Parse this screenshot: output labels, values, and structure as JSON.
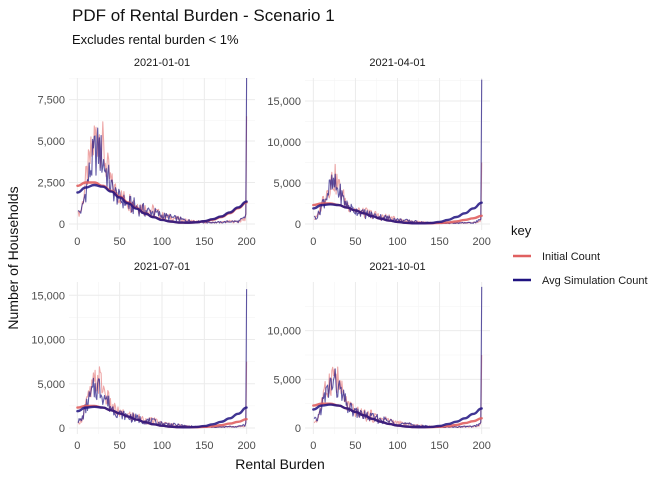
{
  "chart_data": {
    "type": "line",
    "title": "PDF of Rental Burden - Scenario 1",
    "subtitle": "Excludes rental burden < 1%",
    "xlabel": "Rental Burden",
    "ylabel": "Number of Households",
    "xlim": [
      0,
      200
    ],
    "x_ticks": [
      "0",
      "50",
      "100",
      "150",
      "200"
    ],
    "legend": {
      "title": "key",
      "placement": "right",
      "entries": [
        {
          "name": "Initial Count",
          "color": "#e06060"
        },
        {
          "name": "Avg Simulation Count",
          "color": "#1f1280"
        }
      ]
    },
    "panels": [
      {
        "title": "2021-01-01",
        "ylim": [
          0,
          8800
        ],
        "y_ticks": [
          0,
          2500,
          5000,
          7500
        ],
        "y_tick_labels": [
          "0",
          "2,500",
          "5,000",
          "7,500"
        ],
        "spike_end": {
          "initial": 6500,
          "avg": 8800
        },
        "series": [
          {
            "name": "Initial Count",
            "kind": "raw",
            "x": [
              1,
              5,
              10,
              15,
              20,
              25,
              30,
              35,
              40,
              45,
              50,
              60,
              70,
              80,
              90,
              100,
              110,
              120,
              130,
              140,
              150,
              160,
              170,
              180,
              190,
              198
            ],
            "y": [
              600,
              900,
              2600,
              3800,
              5000,
              5600,
              4600,
              3400,
              2400,
              2000,
              1700,
              1400,
              1200,
              900,
              800,
              500,
              400,
              300,
              200,
              150,
              100,
              100,
              100,
              150,
              150,
              300
            ]
          },
          {
            "name": "Avg Simulation Count",
            "kind": "raw",
            "x": [
              1,
              5,
              10,
              15,
              20,
              25,
              30,
              35,
              40,
              45,
              50,
              60,
              70,
              80,
              90,
              100,
              110,
              120,
              130,
              140,
              150,
              160,
              170,
              180,
              190,
              198
            ],
            "y": [
              700,
              800,
              2000,
              3200,
              4200,
              4500,
              3900,
              3000,
              2200,
              1800,
              1500,
              1200,
              1000,
              800,
              700,
              500,
              400,
              300,
              200,
              150,
              100,
              100,
              100,
              150,
              150,
              350
            ]
          },
          {
            "name": "Initial Count",
            "kind": "smooth",
            "x": [
              0,
              10,
              20,
              30,
              40,
              50,
              60,
              70,
              80,
              90,
              100,
              110,
              120,
              130,
              140,
              150,
              160,
              170,
              180,
              190,
              200
            ],
            "y": [
              2300,
              2500,
              2500,
              2300,
              2000,
              1650,
              1300,
              950,
              650,
              420,
              260,
              150,
              90,
              80,
              100,
              160,
              260,
              420,
              650,
              950,
              1300
            ]
          },
          {
            "name": "Avg Simulation Count",
            "kind": "smooth",
            "x": [
              0,
              10,
              20,
              30,
              40,
              50,
              60,
              70,
              80,
              90,
              100,
              110,
              120,
              130,
              140,
              150,
              160,
              170,
              180,
              190,
              200
            ],
            "y": [
              1900,
              2200,
              2350,
              2250,
              1950,
              1600,
              1250,
              920,
              630,
              410,
              250,
              150,
              90,
              80,
              100,
              170,
              290,
              460,
              700,
              1000,
              1350
            ]
          }
        ]
      },
      {
        "title": "2021-04-01",
        "ylim": [
          0,
          17800
        ],
        "y_ticks": [
          0,
          5000,
          10000,
          15000
        ],
        "y_tick_labels": [
          "0",
          "5,000",
          "10,000",
          "15,000"
        ],
        "spike_end": {
          "initial": 7500,
          "avg": 17600
        },
        "series": [
          {
            "name": "Initial Count",
            "kind": "raw",
            "x": [
              1,
              5,
              10,
              15,
              20,
              25,
              30,
              35,
              40,
              45,
              50,
              60,
              70,
              80,
              90,
              100,
              110,
              120,
              130,
              140,
              150,
              160,
              170,
              180,
              190,
              198
            ],
            "y": [
              600,
              900,
              2600,
              3800,
              5000,
              5600,
              4600,
              3400,
              2400,
              2000,
              1700,
              1400,
              1200,
              900,
              800,
              500,
              400,
              300,
              200,
              150,
              100,
              100,
              100,
              150,
              150,
              300
            ]
          },
          {
            "name": "Avg Simulation Count",
            "kind": "raw",
            "x": [
              1,
              5,
              10,
              15,
              20,
              25,
              30,
              35,
              40,
              45,
              50,
              60,
              70,
              80,
              90,
              100,
              110,
              120,
              130,
              140,
              150,
              160,
              170,
              180,
              190,
              198
            ],
            "y": [
              800,
              900,
              2300,
              3400,
              4400,
              4700,
              4000,
              3100,
              2300,
              1900,
              1600,
              1300,
              1050,
              850,
              700,
              500,
              400,
              300,
              200,
              150,
              100,
              100,
              100,
              150,
              150,
              400
            ]
          },
          {
            "name": "Initial Count",
            "kind": "smooth",
            "x": [
              0,
              10,
              20,
              30,
              40,
              50,
              60,
              70,
              80,
              90,
              100,
              110,
              120,
              130,
              140,
              150,
              160,
              170,
              180,
              190,
              200
            ],
            "y": [
              2300,
              2500,
              2500,
              2300,
              2000,
              1650,
              1300,
              950,
              650,
              420,
              260,
              150,
              90,
              80,
              90,
              130,
              200,
              320,
              500,
              700,
              1000
            ]
          },
          {
            "name": "Avg Simulation Count",
            "kind": "smooth",
            "x": [
              0,
              10,
              20,
              30,
              40,
              50,
              60,
              70,
              80,
              90,
              100,
              110,
              120,
              130,
              140,
              150,
              160,
              170,
              180,
              190,
              200
            ],
            "y": [
              1900,
              2300,
              2400,
              2300,
              2000,
              1650,
              1300,
              950,
              650,
              420,
              260,
              150,
              90,
              80,
              120,
              250,
              500,
              850,
              1300,
              1900,
              2600
            ]
          }
        ]
      },
      {
        "title": "2021-07-01",
        "ylim": [
          0,
          16500
        ],
        "y_ticks": [
          0,
          5000,
          10000,
          15000
        ],
        "y_tick_labels": [
          "0",
          "5,000",
          "10,000",
          "15,000"
        ],
        "spike_end": {
          "initial": 7500,
          "avg": 15700
        },
        "series": [
          {
            "name": "Initial Count",
            "kind": "raw",
            "x": [
              1,
              5,
              10,
              15,
              20,
              25,
              30,
              35,
              40,
              45,
              50,
              60,
              70,
              80,
              90,
              100,
              110,
              120,
              130,
              140,
              150,
              160,
              170,
              180,
              190,
              198
            ],
            "y": [
              600,
              900,
              2600,
              3800,
              5000,
              5600,
              4600,
              3400,
              2400,
              2000,
              1700,
              1400,
              1200,
              900,
              800,
              500,
              400,
              300,
              200,
              150,
              100,
              100,
              100,
              150,
              150,
              300
            ]
          },
          {
            "name": "Avg Simulation Count",
            "kind": "raw",
            "x": [
              1,
              5,
              10,
              15,
              20,
              25,
              30,
              35,
              40,
              45,
              50,
              60,
              70,
              80,
              90,
              100,
              110,
              120,
              130,
              140,
              150,
              160,
              170,
              180,
              190,
              198
            ],
            "y": [
              800,
              900,
              2300,
              3400,
              4400,
              4700,
              4000,
              3100,
              2300,
              1900,
              1600,
              1300,
              1050,
              850,
              700,
              500,
              400,
              300,
              200,
              150,
              100,
              100,
              100,
              150,
              150,
              400
            ]
          },
          {
            "name": "Initial Count",
            "kind": "smooth",
            "x": [
              0,
              10,
              20,
              30,
              40,
              50,
              60,
              70,
              80,
              90,
              100,
              110,
              120,
              130,
              140,
              150,
              160,
              170,
              180,
              190,
              200
            ],
            "y": [
              2300,
              2500,
              2500,
              2300,
              2000,
              1650,
              1300,
              950,
              650,
              420,
              260,
              150,
              90,
              80,
              90,
              130,
              200,
              320,
              500,
              700,
              1000
            ]
          },
          {
            "name": "Avg Simulation Count",
            "kind": "smooth",
            "x": [
              0,
              10,
              20,
              30,
              40,
              50,
              60,
              70,
              80,
              90,
              100,
              110,
              120,
              130,
              140,
              150,
              160,
              170,
              180,
              190,
              200
            ],
            "y": [
              1900,
              2300,
              2400,
              2300,
              2000,
              1650,
              1300,
              950,
              650,
              420,
              260,
              150,
              90,
              80,
              110,
              220,
              420,
              700,
              1100,
              1600,
              2300
            ]
          }
        ]
      },
      {
        "title": "2021-10-01",
        "ylim": [
          0,
          15000
        ],
        "y_ticks": [
          0,
          5000,
          10000
        ],
        "y_tick_labels": [
          "0",
          "5,000",
          "10,000"
        ],
        "spike_end": {
          "initial": 7500,
          "avg": 14500
        },
        "series": [
          {
            "name": "Initial Count",
            "kind": "raw",
            "x": [
              1,
              5,
              10,
              15,
              20,
              25,
              30,
              35,
              40,
              45,
              50,
              60,
              70,
              80,
              90,
              100,
              110,
              120,
              130,
              140,
              150,
              160,
              170,
              180,
              190,
              198
            ],
            "y": [
              600,
              900,
              2600,
              3800,
              5000,
              5600,
              4600,
              3400,
              2400,
              2000,
              1700,
              1400,
              1200,
              900,
              800,
              500,
              400,
              300,
              200,
              150,
              100,
              100,
              100,
              150,
              150,
              300
            ]
          },
          {
            "name": "Avg Simulation Count",
            "kind": "raw",
            "x": [
              1,
              5,
              10,
              15,
              20,
              25,
              30,
              35,
              40,
              45,
              50,
              60,
              70,
              80,
              90,
              100,
              110,
              120,
              130,
              140,
              150,
              160,
              170,
              180,
              190,
              198
            ],
            "y": [
              800,
              900,
              2300,
              3400,
              4400,
              4700,
              4000,
              3100,
              2300,
              1900,
              1600,
              1300,
              1050,
              850,
              700,
              500,
              400,
              300,
              200,
              150,
              100,
              100,
              100,
              150,
              150,
              400
            ]
          },
          {
            "name": "Initial Count",
            "kind": "smooth",
            "x": [
              0,
              10,
              20,
              30,
              40,
              50,
              60,
              70,
              80,
              90,
              100,
              110,
              120,
              130,
              140,
              150,
              160,
              170,
              180,
              190,
              200
            ],
            "y": [
              2300,
              2500,
              2500,
              2300,
              2000,
              1650,
              1300,
              950,
              650,
              420,
              260,
              150,
              90,
              80,
              90,
              130,
              200,
              320,
              500,
              700,
              1000
            ]
          },
          {
            "name": "Avg Simulation Count",
            "kind": "smooth",
            "x": [
              0,
              10,
              20,
              30,
              40,
              50,
              60,
              70,
              80,
              90,
              100,
              110,
              120,
              130,
              140,
              150,
              160,
              170,
              180,
              190,
              200
            ],
            "y": [
              1900,
              2300,
              2400,
              2300,
              2000,
              1650,
              1300,
              950,
              650,
              420,
              260,
              150,
              90,
              80,
              110,
              210,
              400,
              650,
              1000,
              1450,
              2000
            ]
          }
        ]
      }
    ]
  }
}
